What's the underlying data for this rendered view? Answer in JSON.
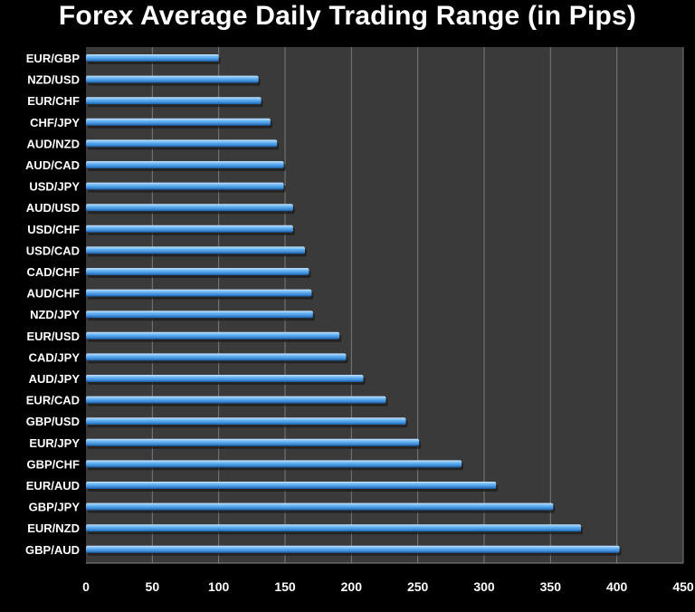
{
  "chart_data": {
    "type": "bar",
    "orientation": "horizontal",
    "title": "Forex Average Daily Trading Range (in Pips)",
    "xlabel": "",
    "ylabel": "",
    "xlim": [
      0,
      450
    ],
    "xticks": [
      0,
      50,
      100,
      150,
      200,
      250,
      300,
      350,
      400,
      450
    ],
    "grid": true,
    "categories": [
      "EUR/GBP",
      "NZD/USD",
      "EUR/CHF",
      "CHF/JPY",
      "AUD/NZD",
      "AUD/CAD",
      "USD/JPY",
      "AUD/USD",
      "USD/CHF",
      "USD/CAD",
      "CAD/CHF",
      "AUD/CHF",
      "NZD/JPY",
      "EUR/USD",
      "CAD/JPY",
      "AUD/JPY",
      "EUR/CAD",
      "GBP/USD",
      "EUR/JPY",
      "GBP/CHF",
      "EUR/AUD",
      "GBP/JPY",
      "EUR/NZD",
      "GBP/AUD"
    ],
    "values": [
      100,
      130,
      132,
      139,
      144,
      149,
      149,
      156,
      156,
      165,
      168,
      170,
      171,
      191,
      196,
      209,
      226,
      241,
      251,
      283,
      309,
      352,
      373,
      402
    ],
    "colors": {
      "background": "#000000",
      "plot_area": "#3a3a3a",
      "bar": "#5aa9ec",
      "bar_highlight": "#c8e4ff",
      "bar_shadow": "#1c5a9c",
      "grid": "#7a7a7a",
      "text": "#ffffff"
    }
  }
}
